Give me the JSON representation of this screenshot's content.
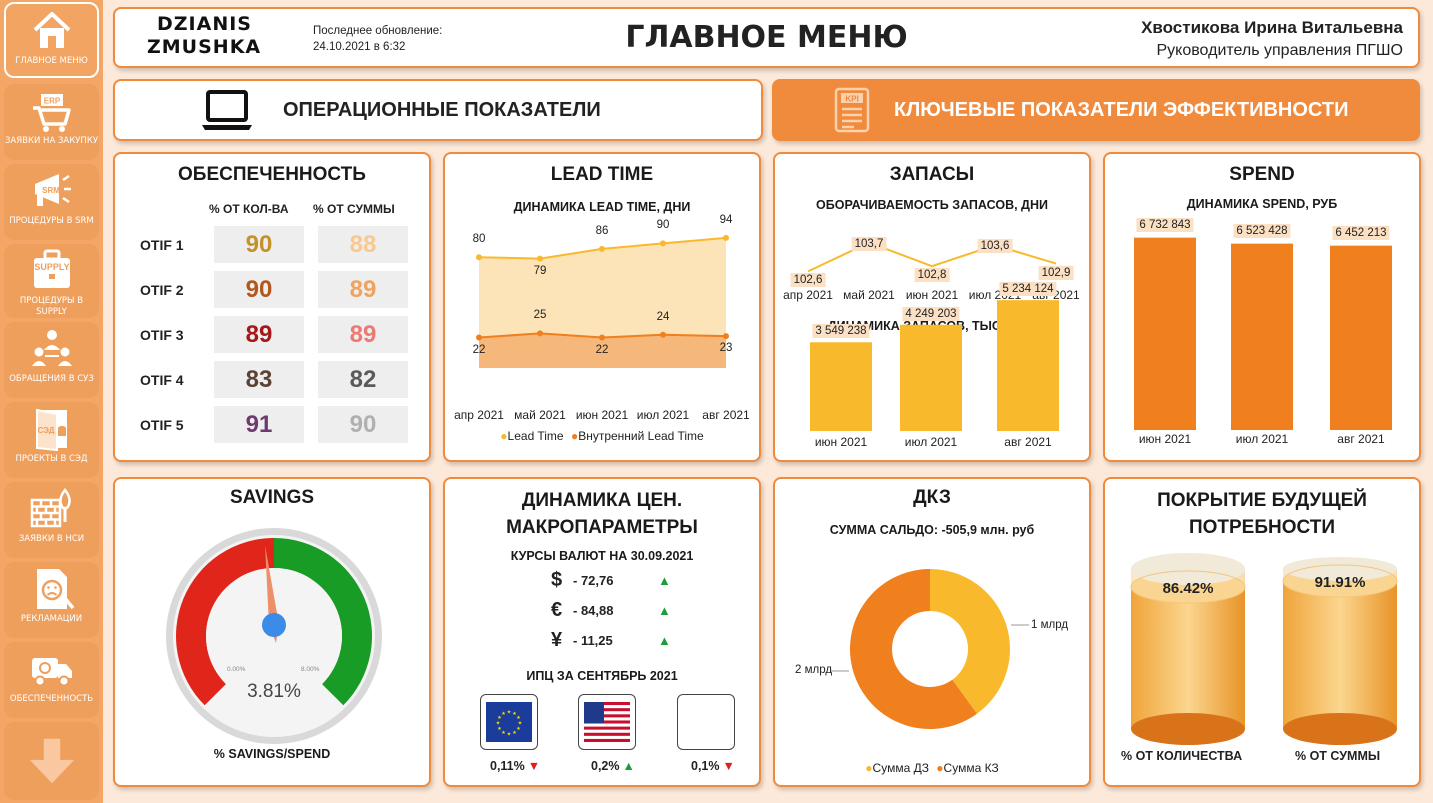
{
  "sidebar": [
    {
      "label": "ГЛАВНОЕ МЕНЮ",
      "icon": "home-icon"
    },
    {
      "label": "ЗАЯВКИ НА ЗАКУПКУ",
      "icon": "erp-cart-icon"
    },
    {
      "label": "ПРОЦЕДУРЫ В SRM",
      "icon": "srm-megaphone-icon"
    },
    {
      "label": "ПРОЦЕДУРЫ В SUPPLY",
      "icon": "supply-bag-icon"
    },
    {
      "label": "ОБРАЩЕНИЯ В СУЗ",
      "icon": "people-icon"
    },
    {
      "label": "ПРОЕКТЫ В СЭД",
      "icon": "sed-door-icon"
    },
    {
      "label": "ЗАЯВКИ В НСИ",
      "icon": "bricks-icon"
    },
    {
      "label": "РЕКЛАМАЦИИ",
      "icon": "sad-document-icon"
    },
    {
      "label": "ОБЕСПЕЧЕННОСТЬ",
      "icon": "truck-icon"
    }
  ],
  "header": {
    "logo_line1": "DZIANIS",
    "logo_line2": "ZMUSHKA",
    "update_label": "Последнее обновление:",
    "update_value": "24.10.2021 в 6:32",
    "title": "ГЛАВНОЕ МЕНЮ",
    "user_name": "Хвостикова Ирина Витальевна",
    "user_role": "Руководитель управления ПГШО"
  },
  "nav": {
    "operational": "ОПЕРАЦИОННЫЕ ПОКАЗАТЕЛИ",
    "kpi": "КЛЮЧЕВЫЕ ПОКАЗАТЕЛИ ЭФФЕКТИВНОСТИ",
    "kpi_icon_text": "KPI"
  },
  "provision": {
    "title": "ОБЕСПЕЧЕННОСТЬ",
    "col1": "% ОТ КОЛ-ВА",
    "col2": "% ОТ СУММЫ",
    "rows": [
      {
        "label": "OTIF 1",
        "qty": "90",
        "sum": "88",
        "qty_color": "#c4922a",
        "sum_color": "#f8c98f"
      },
      {
        "label": "OTIF 2",
        "qty": "90",
        "sum": "89",
        "qty_color": "#b5561c",
        "sum_color": "#f0a35e"
      },
      {
        "label": "OTIF 3",
        "qty": "89",
        "sum": "89",
        "qty_color": "#a51818",
        "sum_color": "#ec7a72"
      },
      {
        "label": "OTIF 4",
        "qty": "83",
        "sum": "82",
        "qty_color": "#5c4136",
        "sum_color": "#5a5a5a"
      },
      {
        "label": "OTIF 5",
        "qty": "91",
        "sum": "90",
        "qty_color": "#6f3b6e",
        "sum_color": "#b0b0b0"
      }
    ]
  },
  "lead_time": {
    "title": "LEAD TIME",
    "subtitle": "ДИНАМИКА LEAD TIME, ДНИ",
    "legend1": "Lead Time",
    "legend2": "Внутренний Lead Time"
  },
  "stocks": {
    "title": "ЗАПАСЫ",
    "subtitle1": "ОБОРАЧИВАЕМОСТЬ ЗАПАСОВ, ДНИ",
    "subtitle2": "ДИНАМИКА ЗАПАСОВ, ТЫС. РУБ."
  },
  "spend": {
    "title": "SPEND",
    "subtitle": "ДИНАМИКА SPEND, РУБ"
  },
  "savings": {
    "title": "SAVINGS",
    "value": "3.81%",
    "min": "0.00%",
    "max": "8.00%",
    "caption": "% SAVINGS/SPEND",
    "level_percent": 3.81,
    "max_percent": 8.0
  },
  "prices": {
    "title_line1": "ДИНАМИКА ЦЕН.",
    "title_line2": "МАКРОПАРАМЕТРЫ",
    "rates_title": "КУРСЫ ВАЛЮТ НА 30.09.2021",
    "rates": [
      {
        "symbol": "$",
        "value": "- 72,76",
        "trend": "▲"
      },
      {
        "symbol": "€",
        "value": "- 84,88",
        "trend": "▲"
      },
      {
        "symbol": "¥",
        "value": "- 11,25",
        "trend": "▲"
      }
    ],
    "cpi_title": "ИПЦ ЗА СЕНТЯБРЬ 2021",
    "cpi": [
      {
        "flag": "eu-flag-icon",
        "value": "0,11%",
        "trend": "▼",
        "trend_color": "#e02020"
      },
      {
        "flag": "us-flag-icon",
        "value": "0,2%",
        "trend": "▲",
        "trend_color": "#1e9e3a"
      },
      {
        "flag": "blank-flag-icon",
        "value": "0,1%",
        "trend": "▼",
        "trend_color": "#e02020"
      }
    ]
  },
  "dkz": {
    "title": "ДКЗ",
    "subtitle": "СУММА САЛЬДО: -505,9 млн. руб",
    "label_right": "1 млрд",
    "label_left": "2 млрд",
    "legend1": "Сумма ДЗ",
    "legend2": "Сумма КЗ"
  },
  "coverage": {
    "title_line1": "ПОКРЫТИЕ БУДУЩЕЙ",
    "title_line2": "ПОТРЕБНОСТИ",
    "qty_value": "86.42%",
    "sum_value": "91.91%",
    "qty_caption": "% ОТ КОЛИЧЕСТВА",
    "sum_caption": "% ОТ СУММЫ"
  },
  "colors": {
    "accent": "#f08a3c",
    "sidebar": "#f3a666",
    "background": "#fde9d9",
    "bar_orange": "#f07f1d",
    "bar_yellow": "#f9b92c"
  },
  "chart_data": [
    {
      "type": "area",
      "title": "ДИНАМИКА LEAD TIME, ДНИ",
      "categories": [
        "апр 2021",
        "май 2021",
        "июн 2021",
        "июл 2021",
        "авг 2021"
      ],
      "series": [
        {
          "name": "Lead Time",
          "values": [
            80,
            79,
            86,
            90,
            94
          ]
        },
        {
          "name": "Внутренний Lead Time",
          "values": [
            22,
            25,
            22,
            24,
            23
          ]
        }
      ],
      "legend": "bottom"
    },
    {
      "type": "line",
      "title": "ОБОРАЧИВАЕМОСТЬ ЗАПАСОВ, ДНИ",
      "categories": [
        "апр 2021",
        "май 2021",
        "июн 2021",
        "июл 2021",
        "авг 2021"
      ],
      "values": [
        102.6,
        103.7,
        102.8,
        103.6,
        102.9
      ],
      "labels": [
        "102,6",
        "103,7",
        "102,8",
        "103,6",
        "102,9"
      ]
    },
    {
      "type": "bar",
      "title": "ДИНАМИКА ЗАПАСОВ, ТЫС. РУБ.",
      "categories": [
        "июн 2021",
        "июл 2021",
        "авг 2021"
      ],
      "values": [
        3549238,
        4249203,
        5234124
      ],
      "labels": [
        "3 549 238",
        "4 249 203",
        "5 234 124"
      ]
    },
    {
      "type": "bar",
      "title": "ДИНАМИКА SPEND, РУБ",
      "categories": [
        "июн 2021",
        "июл 2021",
        "авг 2021"
      ],
      "values": [
        6732843,
        6523428,
        6452213
      ],
      "labels": [
        "6 732 843",
        "6 523 428",
        "6 452 213"
      ]
    },
    {
      "type": "pie",
      "title": "СУММА САЛЬДО: -505,9 млн. руб",
      "series": [
        {
          "name": "Сумма ДЗ",
          "value": 1.0
        },
        {
          "name": "Сумма КЗ",
          "value": 1.5
        }
      ],
      "labels": [
        "1 млрд",
        "2 млрд"
      ],
      "legend": "bottom"
    }
  ]
}
